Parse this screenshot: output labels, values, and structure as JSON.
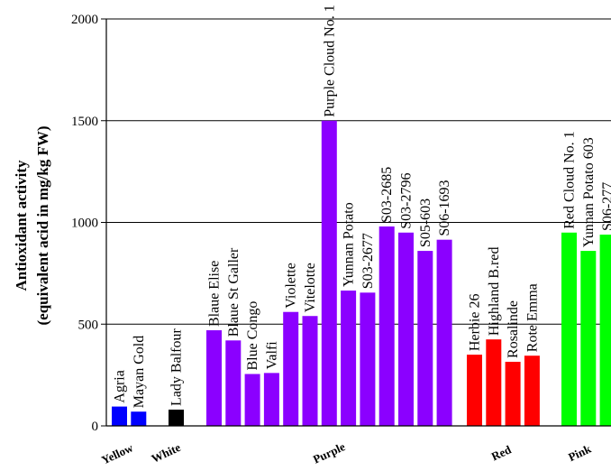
{
  "chart_data": {
    "type": "bar",
    "ylabel_line1": "Antioxidant activity",
    "ylabel_line2": "(equivalent acid in mg/kg FW)",
    "ylim": [
      0,
      2000
    ],
    "yticks": [
      0,
      500,
      1000,
      1500,
      2000
    ],
    "grid": "horizontal",
    "groups": [
      {
        "name": "Yellow",
        "color": "#0000ff",
        "bars": [
          {
            "label": "Agria",
            "value": 95
          },
          {
            "label": "Mayan Gold",
            "value": 70
          }
        ]
      },
      {
        "name": "White",
        "color": "#000000",
        "bars": [
          {
            "label": "Lady Balfour",
            "value": 80
          }
        ]
      },
      {
        "name": "Purple",
        "color": "#8b00ff",
        "bars": [
          {
            "label": "Blaue Elise",
            "value": 470
          },
          {
            "label": "Blaue St Galler",
            "value": 420
          },
          {
            "label": "Blue Congo",
            "value": 255
          },
          {
            "label": "Valfi",
            "value": 260
          },
          {
            "label": "Violette",
            "value": 560
          },
          {
            "label": "Vitelotte",
            "value": 540
          },
          {
            "label": "Purple Cloud No. 1",
            "value": 1500
          },
          {
            "label": "Yunnan Potato",
            "value": 665
          },
          {
            "label": "S03-2677",
            "value": 655
          },
          {
            "label": "S03-2685",
            "value": 980
          },
          {
            "label": "S03-2796",
            "value": 950
          },
          {
            "label": "S05-603",
            "value": 860
          },
          {
            "label": "S06-1693",
            "value": 915
          }
        ]
      },
      {
        "name": "Red",
        "color": "#ff0000",
        "bars": [
          {
            "label": "Herbie 26",
            "value": 350
          },
          {
            "label": "Highland B.red",
            "value": 425
          },
          {
            "label": "Rosalinde",
            "value": 315
          },
          {
            "label": "Rote Emma",
            "value": 345
          }
        ]
      },
      {
        "name": "Pink",
        "color": "#00ff00",
        "bars": [
          {
            "label": "Red Cloud No. 1",
            "value": 950
          },
          {
            "label": "Yunnan Potato 603",
            "value": 860
          },
          {
            "label": "S06-277",
            "value": 940
          }
        ]
      }
    ]
  }
}
